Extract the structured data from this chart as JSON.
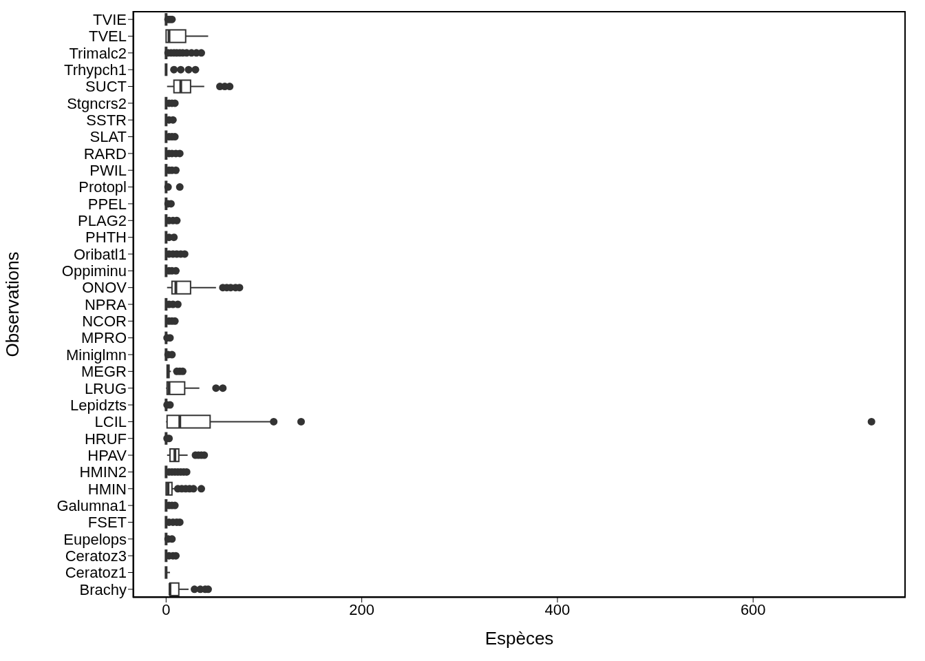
{
  "chart_data": {
    "type": "box",
    "orientation": "horizontal",
    "xlabel": "Espèces",
    "ylabel": "Observations",
    "categories": [
      "TVIE",
      "TVEL",
      "Trimalc2",
      "Trhypch1",
      "SUCT",
      "Stgncrs2",
      "SSTR",
      "SLAT",
      "RARD",
      "PWIL",
      "Protopl",
      "PPEL",
      "PLAG2",
      "PHTH",
      "Oribatl1",
      "Oppiminu",
      "ONOV",
      "NPRA",
      "NCOR",
      "MPRO",
      "Miniglmn",
      "MEGR",
      "LRUG",
      "Lepidzts",
      "LCIL",
      "HRUF",
      "HPAV",
      "HMIN2",
      "HMIN",
      "Galumna1",
      "FSET",
      "Eupelops",
      "Ceratoz3",
      "Ceratoz1",
      "Brachy"
    ],
    "boxes": [
      {
        "low": 0,
        "q1": 0,
        "median": 0,
        "q3": 0,
        "high": 0,
        "outliers": [
          2,
          4,
          6
        ]
      },
      {
        "low": 0,
        "q1": 0,
        "median": 3,
        "q3": 20,
        "high": 43
      },
      {
        "low": 0,
        "q1": 0,
        "median": 0,
        "q3": 0,
        "high": 0,
        "outliers": [
          2,
          5,
          8,
          11,
          14,
          17,
          21,
          26,
          31,
          36
        ]
      },
      {
        "low": 0,
        "q1": 0,
        "median": 0,
        "q3": 0,
        "high": 0,
        "outliers": [
          8,
          15,
          23,
          30
        ]
      },
      {
        "low": 1,
        "q1": 8,
        "median": 15,
        "q3": 25,
        "high": 39,
        "outliers": [
          55,
          60,
          65
        ]
      },
      {
        "low": 0,
        "q1": 0,
        "median": 0,
        "q3": 0,
        "high": 0,
        "outliers": [
          3,
          6,
          9
        ]
      },
      {
        "low": 0,
        "q1": 0,
        "median": 0,
        "q3": 0,
        "high": 0,
        "outliers": [
          3,
          7
        ]
      },
      {
        "low": 0,
        "q1": 0,
        "median": 0,
        "q3": 0,
        "high": 0,
        "outliers": [
          3,
          6,
          9
        ]
      },
      {
        "low": 0,
        "q1": 0,
        "median": 0,
        "q3": 0,
        "high": 0,
        "outliers": [
          3,
          6,
          10,
          14
        ]
      },
      {
        "low": 0,
        "q1": 0,
        "median": 0,
        "q3": 0,
        "high": 0,
        "outliers": [
          3,
          6,
          10
        ]
      },
      {
        "low": 0,
        "q1": 0,
        "median": 0,
        "q3": 0,
        "high": 0,
        "outliers": [
          2,
          14
        ]
      },
      {
        "low": 0,
        "q1": 0,
        "median": 0,
        "q3": 0,
        "high": 0,
        "outliers": [
          2,
          5
        ]
      },
      {
        "low": 0,
        "q1": 0,
        "median": 0,
        "q3": 0,
        "high": 0,
        "outliers": [
          3,
          7,
          11
        ]
      },
      {
        "low": 0,
        "q1": 0,
        "median": 0,
        "q3": 0,
        "high": 0,
        "outliers": [
          3,
          8
        ]
      },
      {
        "low": 0,
        "q1": 0,
        "median": 0,
        "q3": 0,
        "high": 0,
        "outliers": [
          3,
          7,
          11,
          15,
          19
        ]
      },
      {
        "low": 0,
        "q1": 0,
        "median": 0,
        "q3": 0,
        "high": 0,
        "outliers": [
          3,
          6,
          10
        ]
      },
      {
        "low": 1,
        "q1": 6,
        "median": 10,
        "q3": 25,
        "high": 51,
        "outliers": [
          58,
          62,
          66,
          71,
          75
        ]
      },
      {
        "low": 0,
        "q1": 0,
        "median": 0,
        "q3": 0,
        "high": 0,
        "outliers": [
          3,
          7,
          12
        ]
      },
      {
        "low": 0,
        "q1": 0,
        "median": 0,
        "q3": 0,
        "high": 0,
        "outliers": [
          3,
          6,
          9
        ]
      },
      {
        "low": 0,
        "q1": 0,
        "median": 0,
        "q3": 0,
        "high": 0,
        "outliers": [
          1,
          4
        ]
      },
      {
        "low": 0,
        "q1": 0,
        "median": 0,
        "q3": 0,
        "high": 0,
        "outliers": [
          2,
          6
        ]
      },
      {
        "low": 1,
        "q1": 1,
        "median": 2,
        "q3": 3,
        "high": 5,
        "outliers": [
          11,
          14,
          17
        ]
      },
      {
        "low": 0,
        "q1": 1,
        "median": 3,
        "q3": 19,
        "high": 34,
        "outliers": [
          51,
          58
        ]
      },
      {
        "low": 0,
        "q1": 0,
        "median": 0,
        "q3": 0,
        "high": 0,
        "outliers": [
          1,
          4
        ]
      },
      {
        "low": 0,
        "q1": 1,
        "median": 14,
        "q3": 45,
        "high": 107,
        "outliers": [
          110,
          138,
          721
        ]
      },
      {
        "low": 0,
        "q1": 0,
        "median": 0,
        "q3": 0,
        "high": 0,
        "outliers": [
          1,
          3
        ]
      },
      {
        "low": 1,
        "q1": 4,
        "median": 9,
        "q3": 13,
        "high": 22,
        "outliers": [
          30,
          33,
          36,
          39
        ]
      },
      {
        "low": 0,
        "q1": 0,
        "median": 0,
        "q3": 0,
        "high": 0,
        "outliers": [
          3,
          6,
          9,
          12,
          15,
          18,
          21
        ]
      },
      {
        "low": 0,
        "q1": 0,
        "median": 2,
        "q3": 6,
        "high": 9,
        "outliers": [
          12,
          16,
          20,
          24,
          28,
          36
        ]
      },
      {
        "low": 0,
        "q1": 0,
        "median": 0,
        "q3": 0,
        "high": 0,
        "outliers": [
          3,
          6,
          9
        ]
      },
      {
        "low": 0,
        "q1": 0,
        "median": 0,
        "q3": 0,
        "high": 0,
        "outliers": [
          3,
          7,
          11,
          14
        ]
      },
      {
        "low": 0,
        "q1": 0,
        "median": 0,
        "q3": 0,
        "high": 0,
        "outliers": [
          2,
          6
        ]
      },
      {
        "low": 0,
        "q1": 0,
        "median": 0,
        "q3": 0,
        "high": 0,
        "outliers": [
          3,
          7,
          10
        ]
      },
      {
        "low": 0,
        "q1": 0,
        "median": 0,
        "q3": 0,
        "high": 4
      },
      {
        "low": 3,
        "q1": 4,
        "median": 4,
        "q3": 13,
        "high": 23,
        "outliers": [
          29,
          35,
          40,
          43
        ]
      }
    ],
    "xlim": [
      -34,
      756
    ],
    "xticks": [
      0,
      200,
      400,
      600
    ],
    "grid": false
  }
}
